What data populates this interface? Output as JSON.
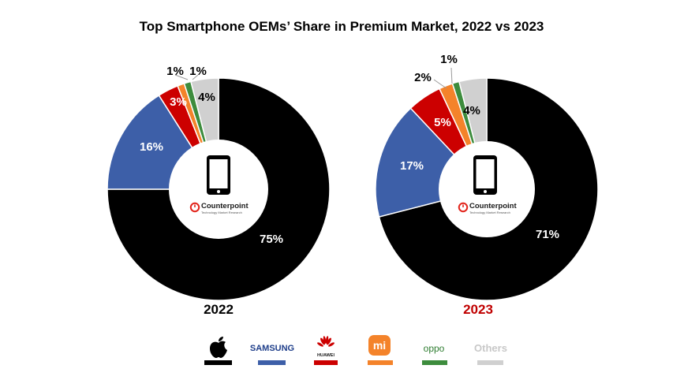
{
  "title": "Top Smartphone OEMs’ Share in Premium Market, 2022 vs 2023",
  "brand": {
    "name": "Counterpoint",
    "tagline": "Technology Market Research",
    "accent": "#e2231a"
  },
  "chart_data": [
    {
      "type": "pie",
      "donut": true,
      "year_label": "2022",
      "year_color": "#000000",
      "slices": [
        {
          "name": "Apple",
          "value": 75,
          "label": "75%",
          "color": "#000000"
        },
        {
          "name": "Samsung",
          "value": 16,
          "label": "16%",
          "color": "#3d5fa8"
        },
        {
          "name": "Huawei",
          "value": 3,
          "label": "3%",
          "color": "#cc0000"
        },
        {
          "name": "Xiaomi",
          "value": 1,
          "label": "1%",
          "color": "#f4832a"
        },
        {
          "name": "OPPO",
          "value": 1,
          "label": "1%",
          "color": "#3d8c3d"
        },
        {
          "name": "Others",
          "value": 4,
          "label": "4%",
          "color": "#d0d0d0"
        }
      ]
    },
    {
      "type": "pie",
      "donut": true,
      "year_label": "2023",
      "year_color": "#c00000",
      "slices": [
        {
          "name": "Apple",
          "value": 71,
          "label": "71%",
          "color": "#000000"
        },
        {
          "name": "Samsung",
          "value": 17,
          "label": "17%",
          "color": "#3d5fa8"
        },
        {
          "name": "Huawei",
          "value": 5,
          "label": "5%",
          "color": "#cc0000"
        },
        {
          "name": "Xiaomi",
          "value": 2,
          "label": "2%",
          "color": "#f4832a"
        },
        {
          "name": "OPPO",
          "value": 1,
          "label": "1%",
          "color": "#3d8c3d"
        },
        {
          "name": "Others",
          "value": 4,
          "label": "4%",
          "color": "#d0d0d0"
        }
      ]
    }
  ],
  "legend": [
    {
      "name": "Apple",
      "icon": "apple-logo-icon",
      "color": "#000000"
    },
    {
      "name": "SAMSUNG",
      "icon": "samsung-wordmark",
      "color": "#3d5fa8"
    },
    {
      "name": "HUAWEI",
      "icon": "huawei-logo-icon",
      "color": "#cc0000"
    },
    {
      "name": "mi",
      "icon": "xiaomi-logo-icon",
      "color": "#f4832a"
    },
    {
      "name": "oppo",
      "icon": "oppo-wordmark",
      "color": "#3d8c3d"
    },
    {
      "name": "Others",
      "icon": "others-text",
      "color": "#d0d0d0"
    }
  ]
}
